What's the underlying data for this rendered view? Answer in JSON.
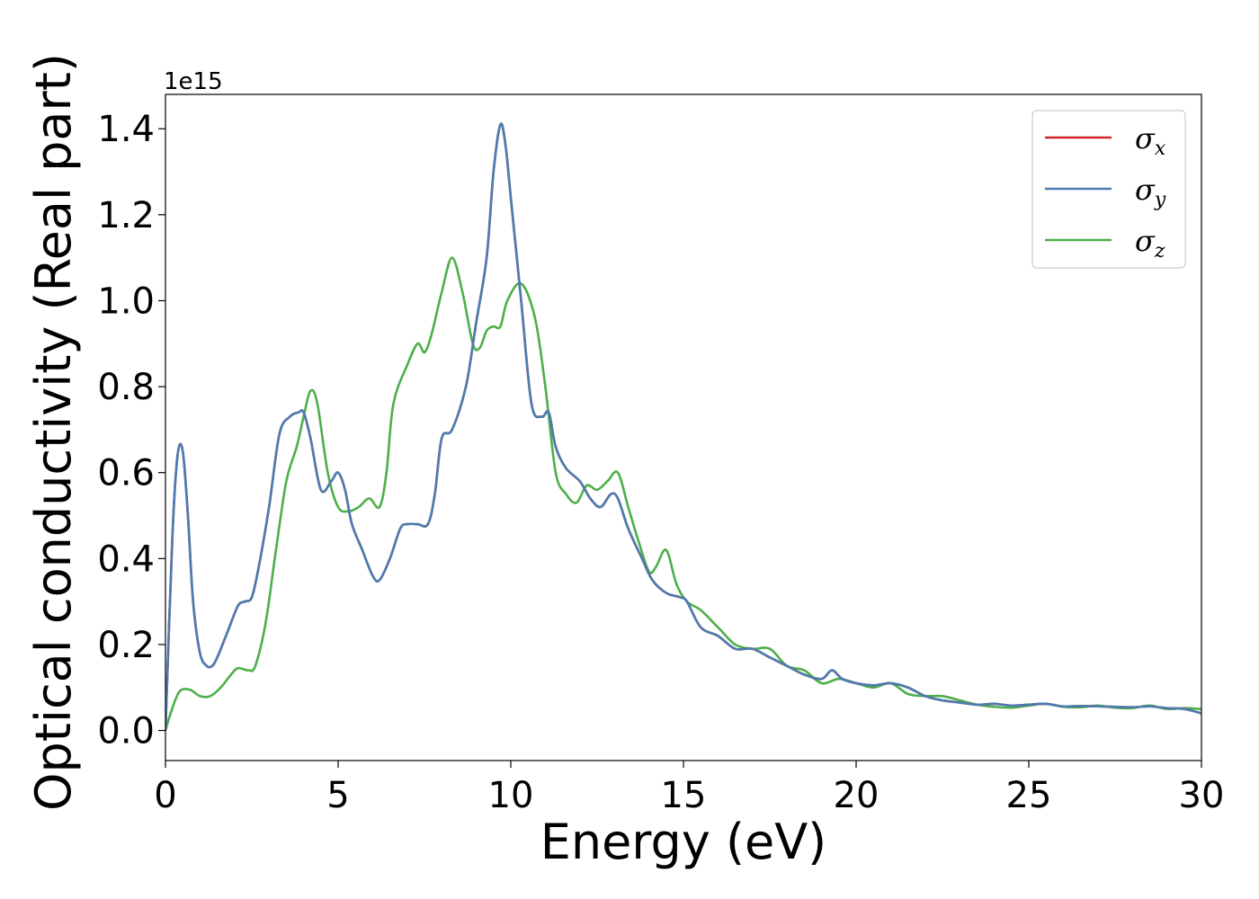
{
  "chart_data": {
    "type": "line",
    "xlabel": "Energy (eV)",
    "ylabel": "Optical conductivity (Real part)",
    "y_offset_label": "1e15",
    "y_scale": 1000000000000000.0,
    "xlim": [
      0,
      30
    ],
    "ylim": [
      -0.07,
      1.48
    ],
    "xticks": [
      0,
      5,
      10,
      15,
      20,
      25,
      30
    ],
    "xtick_labels": [
      "0",
      "5",
      "10",
      "15",
      "20",
      "25",
      "30"
    ],
    "yticks": [
      0.0,
      0.2,
      0.4,
      0.6,
      0.8,
      1.0,
      1.2,
      1.4
    ],
    "ytick_labels": [
      "0.0",
      "0.2",
      "0.4",
      "0.6",
      "0.8",
      "1.0",
      "1.2",
      "1.4"
    ],
    "grid": false,
    "legend_position": "top-right",
    "series": [
      {
        "name": "σx",
        "legend_symbol": "σ",
        "legend_subscript": "x",
        "color": "#d62728",
        "x": [
          0,
          0.2,
          0.35,
          0.5,
          0.65,
          0.8,
          1.0,
          1.2,
          1.35,
          1.5,
          1.8,
          2.1,
          2.3,
          2.5,
          2.7,
          3.0,
          3.3,
          3.6,
          3.85,
          4.0,
          4.2,
          4.5,
          4.8,
          5.0,
          5.2,
          5.4,
          5.7,
          6.0,
          6.2,
          6.5,
          6.8,
          7.0,
          7.3,
          7.6,
          7.8,
          8.0,
          8.3,
          8.7,
          9.0,
          9.3,
          9.5,
          9.7,
          9.85,
          10.0,
          10.3,
          10.6,
          10.9,
          11.1,
          11.3,
          11.6,
          12.0,
          12.3,
          12.6,
          12.9,
          13.1,
          13.4,
          13.8,
          14.1,
          14.5,
          14.9,
          15.1,
          15.5,
          16.0,
          16.5,
          17.0,
          17.5,
          18.0,
          18.5,
          19.0,
          19.3,
          19.6,
          20.0,
          20.5,
          21.0,
          21.5,
          22.0,
          22.5,
          23.0,
          23.5,
          24.0,
          24.5,
          25.0,
          25.5,
          26.0,
          26.5,
          27.0,
          27.5,
          28.0,
          28.5,
          29.0,
          29.5,
          30.0
        ],
        "y": [
          0.0,
          0.45,
          0.64,
          0.65,
          0.5,
          0.3,
          0.18,
          0.15,
          0.15,
          0.17,
          0.23,
          0.29,
          0.3,
          0.31,
          0.38,
          0.52,
          0.69,
          0.73,
          0.74,
          0.74,
          0.68,
          0.56,
          0.58,
          0.6,
          0.56,
          0.48,
          0.42,
          0.36,
          0.35,
          0.4,
          0.47,
          0.48,
          0.48,
          0.48,
          0.55,
          0.68,
          0.7,
          0.8,
          0.95,
          1.1,
          1.3,
          1.41,
          1.36,
          1.24,
          1.0,
          0.76,
          0.73,
          0.74,
          0.66,
          0.61,
          0.58,
          0.54,
          0.52,
          0.55,
          0.54,
          0.47,
          0.4,
          0.35,
          0.32,
          0.31,
          0.3,
          0.24,
          0.22,
          0.19,
          0.19,
          0.17,
          0.15,
          0.13,
          0.12,
          0.14,
          0.12,
          0.11,
          0.105,
          0.11,
          0.1,
          0.08,
          0.07,
          0.065,
          0.06,
          0.062,
          0.058,
          0.06,
          0.062,
          0.056,
          0.057,
          0.056,
          0.055,
          0.054,
          0.056,
          0.052,
          0.05,
          0.04
        ]
      },
      {
        "name": "σy",
        "legend_symbol": "σ",
        "legend_subscript": "y",
        "color": "#4a7cb0",
        "x": [
          0,
          0.2,
          0.35,
          0.5,
          0.65,
          0.8,
          1.0,
          1.2,
          1.35,
          1.5,
          1.8,
          2.1,
          2.3,
          2.5,
          2.7,
          3.0,
          3.3,
          3.6,
          3.85,
          4.0,
          4.2,
          4.5,
          4.8,
          5.0,
          5.2,
          5.4,
          5.7,
          6.0,
          6.2,
          6.5,
          6.8,
          7.0,
          7.3,
          7.6,
          7.8,
          8.0,
          8.3,
          8.7,
          9.0,
          9.3,
          9.5,
          9.7,
          9.85,
          10.0,
          10.3,
          10.6,
          10.9,
          11.1,
          11.3,
          11.6,
          12.0,
          12.3,
          12.6,
          12.9,
          13.1,
          13.4,
          13.8,
          14.1,
          14.5,
          14.9,
          15.1,
          15.5,
          16.0,
          16.5,
          17.0,
          17.5,
          18.0,
          18.5,
          19.0,
          19.3,
          19.6,
          20.0,
          20.5,
          21.0,
          21.5,
          22.0,
          22.5,
          23.0,
          23.5,
          24.0,
          24.5,
          25.0,
          25.5,
          26.0,
          26.5,
          27.0,
          27.5,
          28.0,
          28.5,
          29.0,
          29.5,
          30.0
        ],
        "y": [
          0.0,
          0.45,
          0.64,
          0.65,
          0.5,
          0.3,
          0.18,
          0.15,
          0.15,
          0.17,
          0.23,
          0.29,
          0.3,
          0.31,
          0.38,
          0.52,
          0.69,
          0.73,
          0.74,
          0.74,
          0.68,
          0.56,
          0.58,
          0.6,
          0.56,
          0.48,
          0.42,
          0.36,
          0.35,
          0.4,
          0.47,
          0.48,
          0.48,
          0.48,
          0.55,
          0.68,
          0.7,
          0.8,
          0.95,
          1.1,
          1.3,
          1.41,
          1.36,
          1.24,
          1.0,
          0.76,
          0.73,
          0.74,
          0.66,
          0.61,
          0.58,
          0.54,
          0.52,
          0.55,
          0.54,
          0.47,
          0.4,
          0.35,
          0.32,
          0.31,
          0.3,
          0.24,
          0.22,
          0.19,
          0.19,
          0.17,
          0.15,
          0.13,
          0.12,
          0.14,
          0.12,
          0.11,
          0.105,
          0.11,
          0.1,
          0.08,
          0.07,
          0.065,
          0.06,
          0.062,
          0.058,
          0.06,
          0.062,
          0.056,
          0.057,
          0.056,
          0.055,
          0.054,
          0.056,
          0.052,
          0.05,
          0.04
        ]
      },
      {
        "name": "σz",
        "legend_symbol": "σ",
        "legend_subscript": "z",
        "color": "#4daf4a",
        "x": [
          0,
          0.15,
          0.4,
          0.7,
          1.0,
          1.3,
          1.6,
          1.9,
          2.1,
          2.4,
          2.6,
          2.9,
          3.2,
          3.5,
          3.8,
          4.0,
          4.2,
          4.4,
          4.7,
          5.0,
          5.3,
          5.6,
          5.9,
          6.2,
          6.4,
          6.6,
          7.0,
          7.3,
          7.5,
          7.7,
          8.0,
          8.3,
          8.6,
          8.9,
          9.1,
          9.3,
          9.5,
          9.7,
          9.9,
          10.3,
          10.7,
          11.0,
          11.3,
          11.6,
          11.9,
          12.2,
          12.5,
          12.8,
          13.1,
          13.4,
          13.7,
          14.0,
          14.2,
          14.5,
          14.8,
          15.1,
          15.5,
          16.0,
          16.5,
          17.0,
          17.5,
          18.0,
          18.5,
          19.0,
          19.5,
          20.0,
          20.5,
          21.0,
          21.5,
          22.0,
          22.5,
          23.0,
          23.5,
          24.0,
          24.5,
          25.0,
          25.5,
          26.0,
          26.5,
          27.0,
          27.5,
          28.0,
          28.5,
          29.0,
          29.5,
          30.0
        ],
        "y": [
          0.0,
          0.04,
          0.09,
          0.095,
          0.08,
          0.08,
          0.1,
          0.13,
          0.145,
          0.14,
          0.15,
          0.25,
          0.42,
          0.58,
          0.66,
          0.73,
          0.79,
          0.76,
          0.6,
          0.52,
          0.51,
          0.52,
          0.54,
          0.52,
          0.6,
          0.76,
          0.85,
          0.9,
          0.88,
          0.92,
          1.02,
          1.1,
          1.02,
          0.9,
          0.89,
          0.93,
          0.94,
          0.94,
          1.0,
          1.04,
          0.96,
          0.8,
          0.6,
          0.55,
          0.53,
          0.57,
          0.56,
          0.58,
          0.6,
          0.52,
          0.44,
          0.37,
          0.38,
          0.42,
          0.34,
          0.3,
          0.28,
          0.24,
          0.2,
          0.19,
          0.19,
          0.15,
          0.14,
          0.11,
          0.12,
          0.11,
          0.1,
          0.11,
          0.085,
          0.08,
          0.08,
          0.07,
          0.06,
          0.055,
          0.053,
          0.058,
          0.062,
          0.055,
          0.054,
          0.058,
          0.053,
          0.052,
          0.058,
          0.05,
          0.052,
          0.05
        ]
      }
    ]
  }
}
